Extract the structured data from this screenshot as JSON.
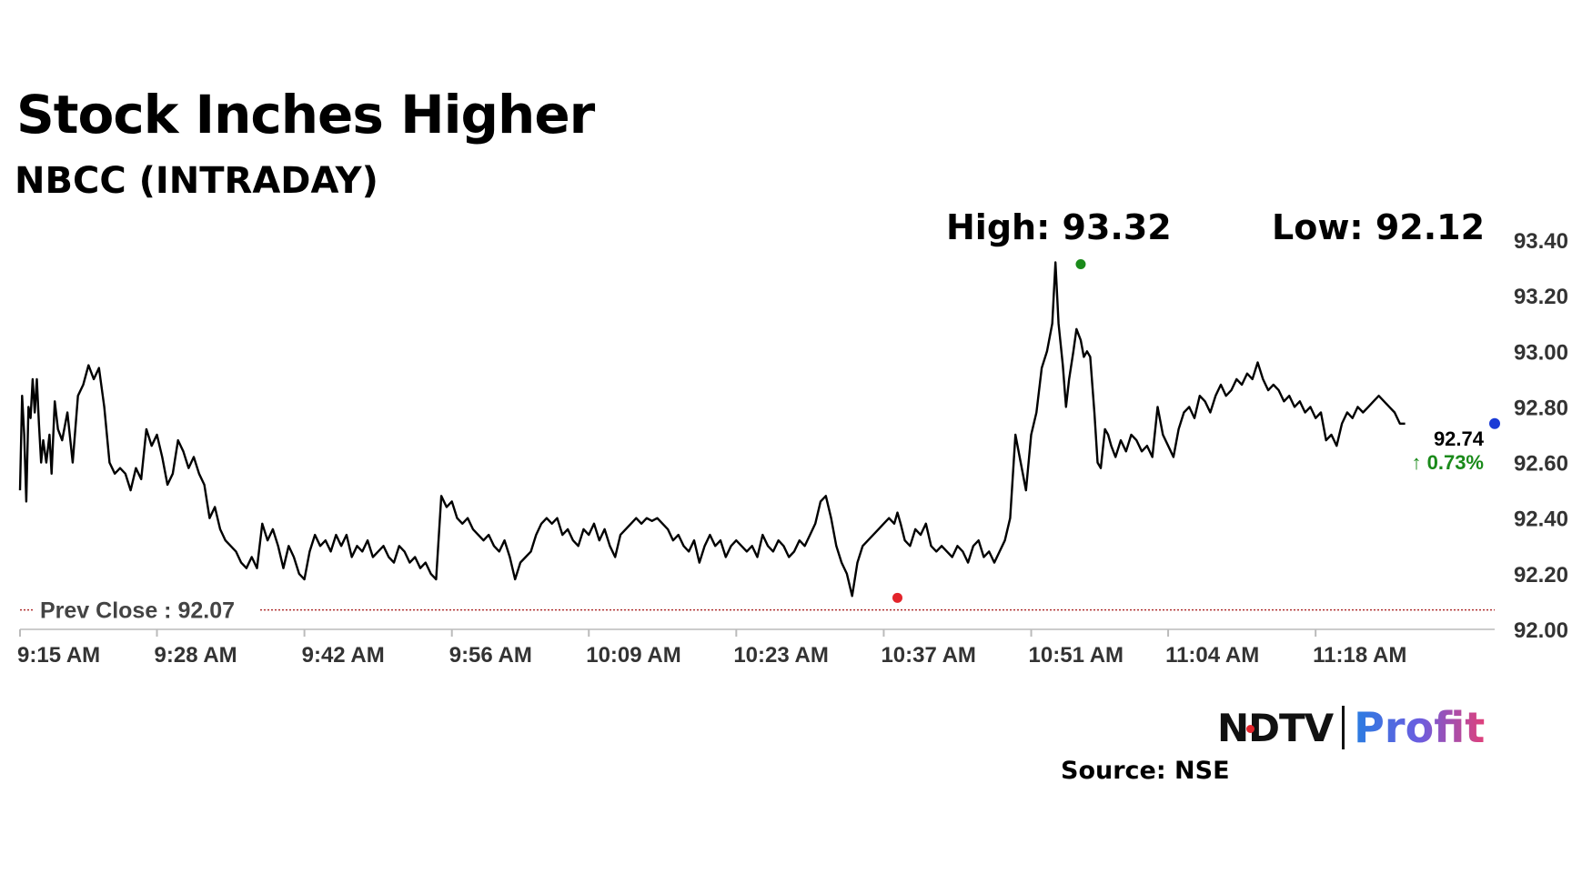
{
  "header": {
    "title": "Stock Inches Higher",
    "subtitle": "NBCC (INTRADAY)",
    "high_label": "High: 93.32",
    "low_label": "Low: 92.12"
  },
  "footer": {
    "logo_left": "NDTV",
    "logo_right": "Profit",
    "source": "Source: NSE"
  },
  "colors": {
    "line": "#000000",
    "high_marker": "#1a8a1a",
    "low_marker": "#e3242b",
    "last_marker": "#1a3ad6",
    "prev_close_line": "#b03030",
    "positive": "#1a8a1a"
  },
  "chart_data": {
    "type": "line",
    "title": "Stock Inches Higher",
    "subtitle": "NBCC (INTRADAY)",
    "xlabel": "",
    "ylabel": "",
    "ylim": [
      92.0,
      93.4
    ],
    "y_ticks": [
      "93.40",
      "93.20",
      "93.00",
      "92.80",
      "92.60",
      "92.40",
      "92.20",
      "92.00"
    ],
    "x_tick_labels": [
      "9:15 AM",
      "9:28 AM",
      "9:42 AM",
      "9:56 AM",
      "10:09 AM",
      "10:23 AM",
      "10:37 AM",
      "10:51 AM",
      "11:04 AM",
      "11:18 AM"
    ],
    "x_ticks_min": [
      0,
      13,
      27,
      41,
      54,
      68,
      82,
      96,
      109,
      123
    ],
    "x_range_min": [
      0,
      140
    ],
    "grid": false,
    "prev_close": {
      "label": "Prev Close : 92.07",
      "value": 92.07
    },
    "high": {
      "label": "High: 93.32",
      "value": 93.32,
      "x_min": 100.7
    },
    "low": {
      "label": "Low: 92.12",
      "value": 92.12,
      "x_min": 83.3
    },
    "last": {
      "value_label": "92.74",
      "change_label": "0.73%",
      "value": 92.74,
      "x_min": 140
    },
    "series": [
      {
        "x_min": [
          0,
          0.2,
          0.4,
          0.6,
          0.8,
          1.0,
          1.2,
          1.4,
          1.6,
          1.8,
          2.0,
          2.2,
          2.5,
          2.8,
          3.0,
          3.3,
          3.6,
          4.0,
          4.5,
          5.0,
          5.5,
          6.0,
          6.5,
          7.0,
          7.5,
          8.0,
          8.5,
          9.0,
          9.5,
          10.0,
          10.5,
          11.0,
          11.5,
          12.0,
          12.5,
          13.0,
          13.5,
          14.0,
          14.5,
          15.0,
          15.5,
          16.0,
          16.5,
          17.0,
          17.5,
          18.0,
          18.5,
          19.0,
          19.5,
          20.0,
          20.5,
          21.0,
          21.5,
          22.0,
          22.5,
          23.0,
          23.5,
          24.0,
          24.5,
          25.0,
          25.5,
          26.0,
          26.5,
          27.0,
          27.5,
          28.0,
          28.5,
          29.0,
          29.5,
          30.0,
          30.5,
          31.0,
          31.5,
          32.0,
          32.5,
          33.0,
          33.5,
          34.0,
          34.5,
          35.0,
          35.5,
          36.0,
          36.5,
          37.0,
          37.5,
          38.0,
          38.5,
          39.0,
          39.5,
          40.0,
          40.5,
          41.0,
          41.5,
          42.0,
          42.5,
          43.0,
          43.5,
          44.0,
          44.5,
          45.0,
          45.5,
          46.0,
          46.5,
          47.0,
          47.5,
          48.0,
          48.5,
          49.0,
          49.5,
          50.0,
          50.5,
          51.0,
          51.5,
          52.0,
          52.5,
          53.0,
          53.5,
          54.0,
          54.5,
          55.0,
          55.5,
          56.0,
          56.5,
          57.0,
          57.5,
          58.0,
          58.5,
          59.0,
          59.5,
          60.0,
          60.5,
          61.0,
          61.5,
          62.0,
          62.5,
          63.0,
          63.5,
          64.0,
          64.5,
          65.0,
          65.5,
          66.0,
          66.5,
          67.0,
          67.5,
          68.0,
          68.5,
          69.0,
          69.5,
          70.0,
          70.5,
          71.0,
          71.5,
          72.0,
          72.5,
          73.0,
          73.5,
          74.0,
          74.5,
          75.0,
          75.5,
          76.0,
          76.5,
          77.0,
          77.5,
          78.0,
          78.5,
          79.0,
          79.5,
          80.0,
          80.5,
          81.0,
          81.5,
          82.0,
          82.5,
          83.0,
          83.3,
          83.6,
          84.0,
          84.5,
          85.0,
          85.5,
          86.0,
          86.5,
          87.0,
          87.5,
          88.0,
          88.5,
          89.0,
          89.5,
          90.0,
          90.5,
          91.0,
          91.5,
          92.0,
          92.5,
          93.0,
          93.5,
          94.0,
          94.5,
          95.0,
          95.5,
          96.0,
          96.5,
          97.0,
          97.5,
          98.0,
          98.3,
          98.6,
          99.0,
          99.3,
          99.6,
          100.0,
          100.3,
          100.7,
          101.0,
          101.3,
          101.6,
          102.0,
          102.3,
          102.6,
          103.0,
          103.3,
          103.6,
          104.0,
          104.5,
          105.0,
          105.5,
          106.0,
          106.5,
          107.0,
          107.5,
          108.0,
          108.5,
          109.0,
          109.5,
          110.0,
          110.5,
          111.0,
          111.5,
          112.0,
          112.5,
          113.0,
          113.5,
          114.0,
          114.5,
          115.0,
          115.5,
          116.0,
          116.5,
          117.0,
          117.5,
          118.0,
          118.5,
          119.0,
          119.5,
          120.0,
          120.5,
          121.0,
          121.5,
          122.0,
          122.5,
          123.0,
          123.5,
          124.0,
          124.5,
          125.0,
          125.5,
          126.0,
          126.5,
          127.0,
          127.5,
          128.0,
          128.5,
          129.0,
          129.5,
          130.0,
          130.5,
          131.0,
          131.5,
          132.0,
          132.5,
          133.0,
          133.5,
          134.0,
          134.5,
          135.0,
          135.5,
          136.0,
          136.5,
          137.0,
          137.5,
          138.0,
          138.5,
          139.0,
          139.5,
          140.0
        ],
        "values": [
          92.5,
          92.84,
          92.7,
          92.46,
          92.8,
          92.76,
          92.9,
          92.78,
          92.9,
          92.74,
          92.6,
          92.68,
          92.6,
          92.7,
          92.56,
          92.82,
          92.72,
          92.68,
          92.78,
          92.6,
          92.84,
          92.88,
          92.95,
          92.9,
          92.94,
          92.8,
          92.6,
          92.56,
          92.58,
          92.56,
          92.5,
          92.58,
          92.54,
          92.72,
          92.66,
          92.7,
          92.62,
          92.52,
          92.56,
          92.68,
          92.64,
          92.58,
          92.62,
          92.56,
          92.52,
          92.4,
          92.44,
          92.36,
          92.32,
          92.3,
          92.28,
          92.24,
          92.22,
          92.26,
          92.22,
          92.38,
          92.32,
          92.36,
          92.3,
          92.22,
          92.3,
          92.26,
          92.2,
          92.18,
          92.28,
          92.34,
          92.3,
          92.32,
          92.28,
          92.34,
          92.3,
          92.34,
          92.26,
          92.3,
          92.28,
          92.32,
          92.26,
          92.28,
          92.3,
          92.26,
          92.24,
          92.3,
          92.28,
          92.24,
          92.26,
          92.22,
          92.24,
          92.2,
          92.18,
          92.48,
          92.44,
          92.46,
          92.4,
          92.38,
          92.4,
          92.36,
          92.34,
          92.32,
          92.34,
          92.3,
          92.28,
          92.32,
          92.26,
          92.18,
          92.24,
          92.26,
          92.28,
          92.34,
          92.38,
          92.4,
          92.38,
          92.4,
          92.34,
          92.36,
          92.32,
          92.3,
          92.36,
          92.34,
          92.38,
          92.32,
          92.36,
          92.3,
          92.26,
          92.34,
          92.36,
          92.38,
          92.4,
          92.38,
          92.4,
          92.39,
          92.4,
          92.38,
          92.36,
          92.32,
          92.34,
          92.3,
          92.28,
          92.32,
          92.24,
          92.3,
          92.34,
          92.3,
          92.32,
          92.26,
          92.3,
          92.32,
          92.3,
          92.28,
          92.3,
          92.26,
          92.34,
          92.3,
          92.28,
          92.32,
          92.3,
          92.26,
          92.28,
          92.32,
          92.3,
          92.34,
          92.38,
          92.46,
          92.48,
          92.4,
          92.3,
          92.24,
          92.2,
          92.12,
          92.24,
          92.3,
          92.32,
          92.34,
          92.36,
          92.38,
          92.4,
          92.38,
          92.42,
          92.38,
          92.32,
          92.3,
          92.36,
          92.34,
          92.38,
          92.3,
          92.28,
          92.3,
          92.28,
          92.26,
          92.3,
          92.28,
          92.24,
          92.3,
          92.32,
          92.26,
          92.28,
          92.24,
          92.28,
          92.32,
          92.4,
          92.7,
          92.6,
          92.5,
          92.7,
          92.78,
          92.94,
          93.0,
          93.1,
          93.32,
          93.1,
          92.95,
          92.8,
          92.9,
          93.0,
          93.08,
          93.04,
          92.98,
          93.0,
          92.98,
          92.78,
          92.6,
          92.58,
          92.72,
          92.7,
          92.66,
          92.62,
          92.68,
          92.64,
          92.7,
          92.68,
          92.64,
          92.66,
          92.62,
          92.8,
          92.7,
          92.66,
          92.62,
          92.72,
          92.78,
          92.8,
          92.76,
          92.84,
          92.82,
          92.78,
          92.84,
          92.88,
          92.84,
          92.86,
          92.9,
          92.88,
          92.92,
          92.9,
          92.96,
          92.9,
          92.86,
          92.88,
          92.86,
          92.82,
          92.84,
          92.8,
          92.82,
          92.78,
          92.8,
          92.76,
          92.78,
          92.68,
          92.7,
          92.66,
          92.74,
          92.78,
          92.76,
          92.8,
          92.78,
          92.8,
          92.82,
          92.84,
          92.82,
          92.8,
          92.78,
          92.74,
          92.74
        ]
      }
    ]
  }
}
